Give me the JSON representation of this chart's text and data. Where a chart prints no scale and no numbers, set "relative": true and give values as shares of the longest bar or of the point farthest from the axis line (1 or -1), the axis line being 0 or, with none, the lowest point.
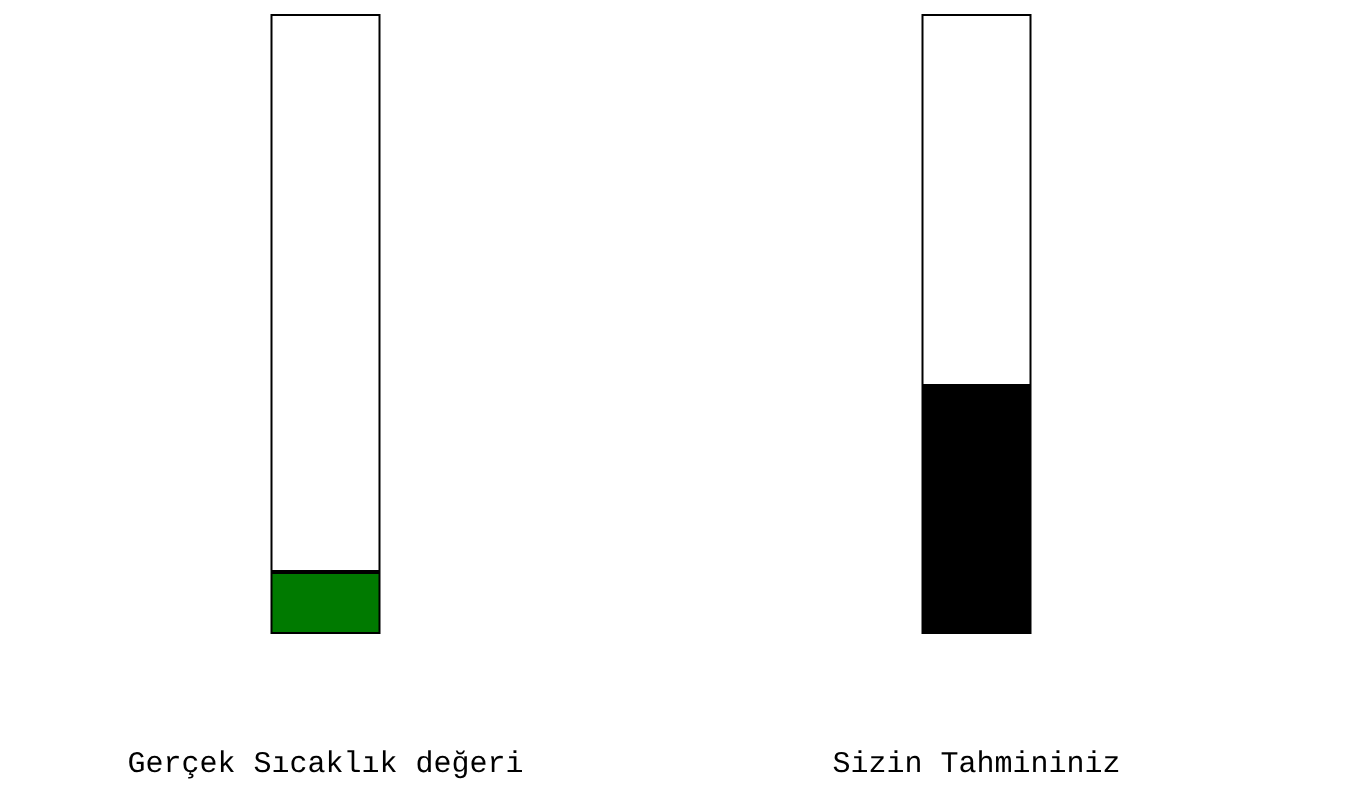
{
  "chart_data": {
    "type": "bar",
    "relative": true,
    "stacked": true,
    "categories": [
      "Gerçek Sıcaklık değeri",
      "Sizin Tahmininiz"
    ],
    "series": [
      {
        "colors": [
          "#007a00",
          "#000000"
        ],
        "values": [
          0.1,
          0.4
        ]
      },
      {
        "color": "#ffffff",
        "values": [
          0.9,
          0.6
        ]
      }
    ]
  }
}
